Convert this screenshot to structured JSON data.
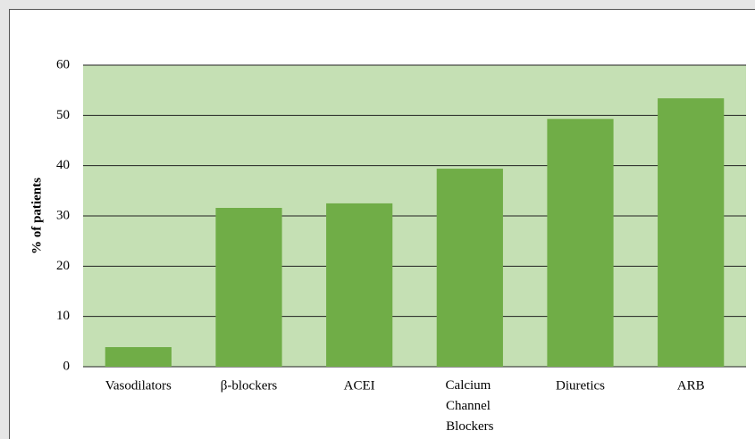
{
  "chart_data": {
    "type": "bar",
    "y_label": "% of patients",
    "categories": [
      "Vasodilators",
      "β-blockers",
      "ACEI",
      "Calcium Channel Blockers",
      "Diuretics",
      "ARB"
    ],
    "values": [
      3.9,
      31.6,
      32.5,
      39.4,
      49.3,
      53.4
    ],
    "color": "#70ad47",
    "plot_background": "#c5e0b4",
    "ylim": [
      0,
      60
    ],
    "yticks": [
      0,
      10,
      20,
      30,
      40,
      50,
      60
    ],
    "grid": true
  }
}
